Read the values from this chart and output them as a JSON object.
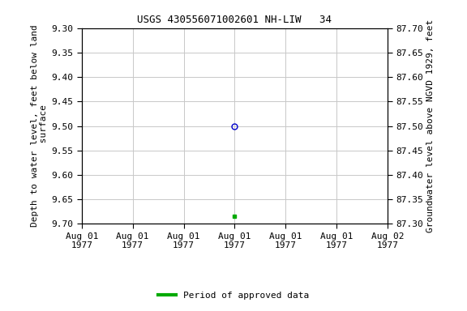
{
  "title": "USGS 430556071002601 NH-LIW   34",
  "ylabel_left": "Depth to water level, feet below land\n surface",
  "ylabel_right": "Groundwater level above NGVD 1929, feet",
  "ylim_left": [
    9.7,
    9.3
  ],
  "ylim_right": [
    87.3,
    87.7
  ],
  "yticks_left": [
    9.3,
    9.35,
    9.4,
    9.45,
    9.5,
    9.55,
    9.6,
    9.65,
    9.7
  ],
  "yticks_right": [
    87.7,
    87.65,
    87.6,
    87.55,
    87.5,
    87.45,
    87.4,
    87.35,
    87.3
  ],
  "data_point_open": {
    "x": 12,
    "value": 9.5,
    "color": "#0000cc",
    "marker": "o",
    "facecolor": "none",
    "markersize": 5
  },
  "data_point_solid": {
    "x": 12,
    "value": 9.685,
    "color": "#00aa00",
    "marker": "s",
    "markersize": 3
  },
  "xlim": [
    0,
    24
  ],
  "xtick_positions": [
    0,
    4,
    8,
    12,
    16,
    20,
    24
  ],
  "xtick_labels": [
    "Aug 01\n1977",
    "Aug 01\n1977",
    "Aug 01\n1977",
    "Aug 01\n1977",
    "Aug 01\n1977",
    "Aug 01\n1977",
    "Aug 02\n1977"
  ],
  "legend_label": "Period of approved data",
  "legend_color": "#00aa00",
  "bg_color": "#ffffff",
  "grid_color": "#c8c8c8",
  "title_fontsize": 9,
  "tick_fontsize": 8,
  "ylabel_fontsize": 8
}
